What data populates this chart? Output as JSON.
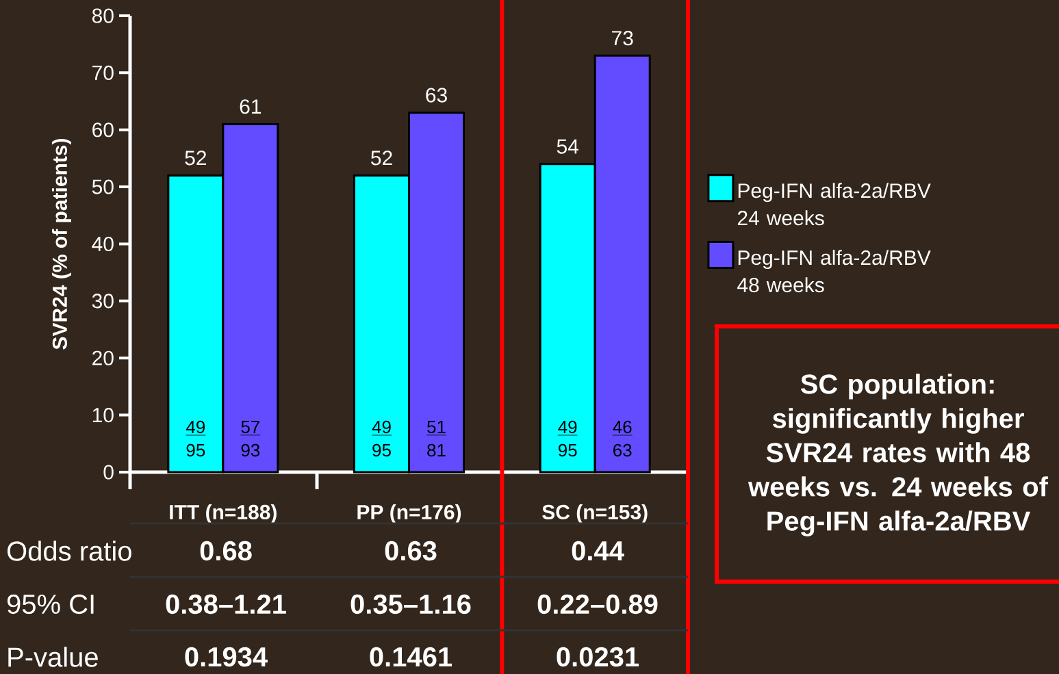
{
  "chart_data": {
    "type": "bar",
    "ylabel": "SVR24 (% of patients)",
    "categories": [
      "ITT (n=188)",
      "PP (n=176)",
      "SC (n=153)"
    ],
    "series": [
      {
        "name": "Peg-IFN alfa-2a/RBV 24 weeks",
        "color": "#00ffff",
        "values": [
          52,
          52,
          54
        ]
      },
      {
        "name": "Peg-IFN alfa-2a/RBV 48 weeks",
        "color": "#634cff",
        "values": [
          61,
          63,
          73
        ]
      }
    ],
    "ylim": [
      0,
      80
    ],
    "yticks": [
      0,
      10,
      20,
      30,
      40,
      50,
      60,
      70,
      80
    ],
    "data_labels": true,
    "legend": "right",
    "annotations": [
      "49",
      "95",
      "57",
      "93",
      "49",
      "95",
      "51",
      "81",
      "49",
      "95",
      "46",
      "63",
      "Odds ratio",
      "0.68",
      "0.63",
      "0.44",
      "95% CI",
      "0.38–1.21",
      "0.35–1.16",
      "0.22–0.89",
      "P-value",
      "0.1934",
      "0.1461",
      "0.0231",
      "SC population: significantly higher SVR24 rates with 48 weeks vs. 24 weeks of Peg-IFN alfa-2a/RBV"
    ]
  }
}
